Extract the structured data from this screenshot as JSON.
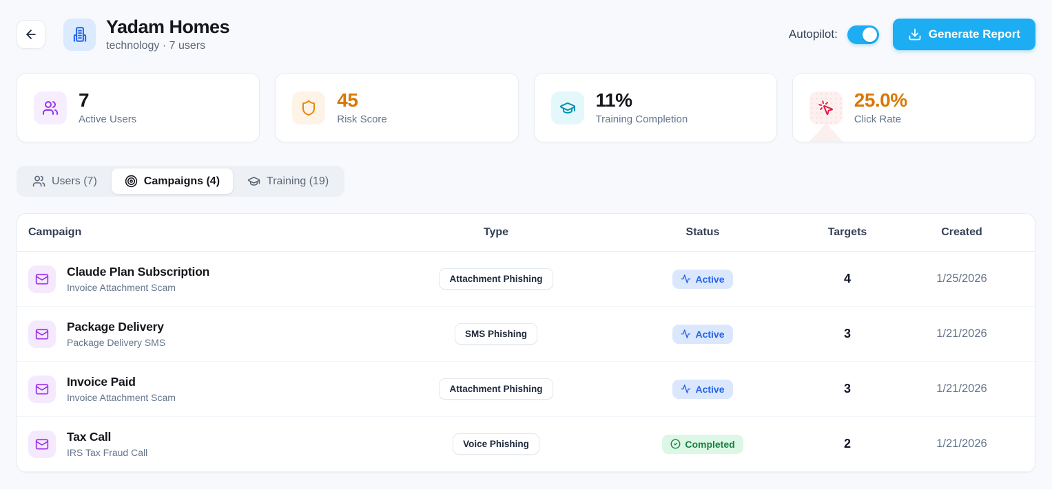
{
  "colors": {
    "accent": "#1dadf2",
    "page-bg": "#f7f9fc",
    "active-badge-bg": "#dbe7fd",
    "active-badge-text": "#2563eb",
    "completed-badge-bg": "#dcf7e6",
    "completed-badge-text": "#1a7f43"
  },
  "header": {
    "title": "Yadam Homes",
    "subtitle": "technology · 7 users",
    "autopilot_label": "Autopilot:",
    "autopilot_state": "on",
    "generate_report_label": "Generate Report"
  },
  "stats": [
    {
      "value": "7",
      "label": "Active Users",
      "icon": "users",
      "value_color": "#16161d",
      "icon_color": "#9333ea",
      "icon_bg": "#f6edfe"
    },
    {
      "value": "45",
      "label": "Risk Score",
      "icon": "shield",
      "value_color": "#d97706",
      "icon_color": "#e8860c",
      "icon_bg": "#fdf4e7"
    },
    {
      "value": "11%",
      "label": "Training Completion",
      "icon": "graduation-cap",
      "value_color": "#16161d",
      "icon_color": "#0891b2",
      "icon_bg": "#e4f7fa"
    },
    {
      "value": "25.0%",
      "label": "Click Rate",
      "icon": "pointer-click",
      "value_color": "#d97706",
      "icon_color": "#e11d48",
      "icon_bg": "#fdf1f0",
      "decor": true
    }
  ],
  "tabs": [
    {
      "label": "Users (7)",
      "icon": "users",
      "active": false
    },
    {
      "label": "Campaigns (4)",
      "icon": "target",
      "active": true
    },
    {
      "label": "Training (19)",
      "icon": "graduation-cap",
      "active": false
    }
  ],
  "table": {
    "columns": [
      "Campaign",
      "Type",
      "Status",
      "Targets",
      "Created"
    ],
    "rows": [
      {
        "name": "Claude Plan Subscription",
        "description": "Invoice Attachment Scam",
        "type": "Attachment Phishing",
        "status": "Active",
        "status_icon": "activity",
        "targets": "4",
        "created": "1/25/2026"
      },
      {
        "name": "Package Delivery",
        "description": "Package Delivery SMS",
        "type": "SMS Phishing",
        "status": "Active",
        "status_icon": "activity",
        "targets": "3",
        "created": "1/21/2026"
      },
      {
        "name": "Invoice Paid",
        "description": "Invoice Attachment Scam",
        "type": "Attachment Phishing",
        "status": "Active",
        "status_icon": "activity",
        "targets": "3",
        "created": "1/21/2026"
      },
      {
        "name": "Tax Call",
        "description": "IRS Tax Fraud Call",
        "type": "Voice Phishing",
        "status": "Completed",
        "status_icon": "check-circle",
        "targets": "2",
        "created": "1/21/2026"
      }
    ]
  }
}
